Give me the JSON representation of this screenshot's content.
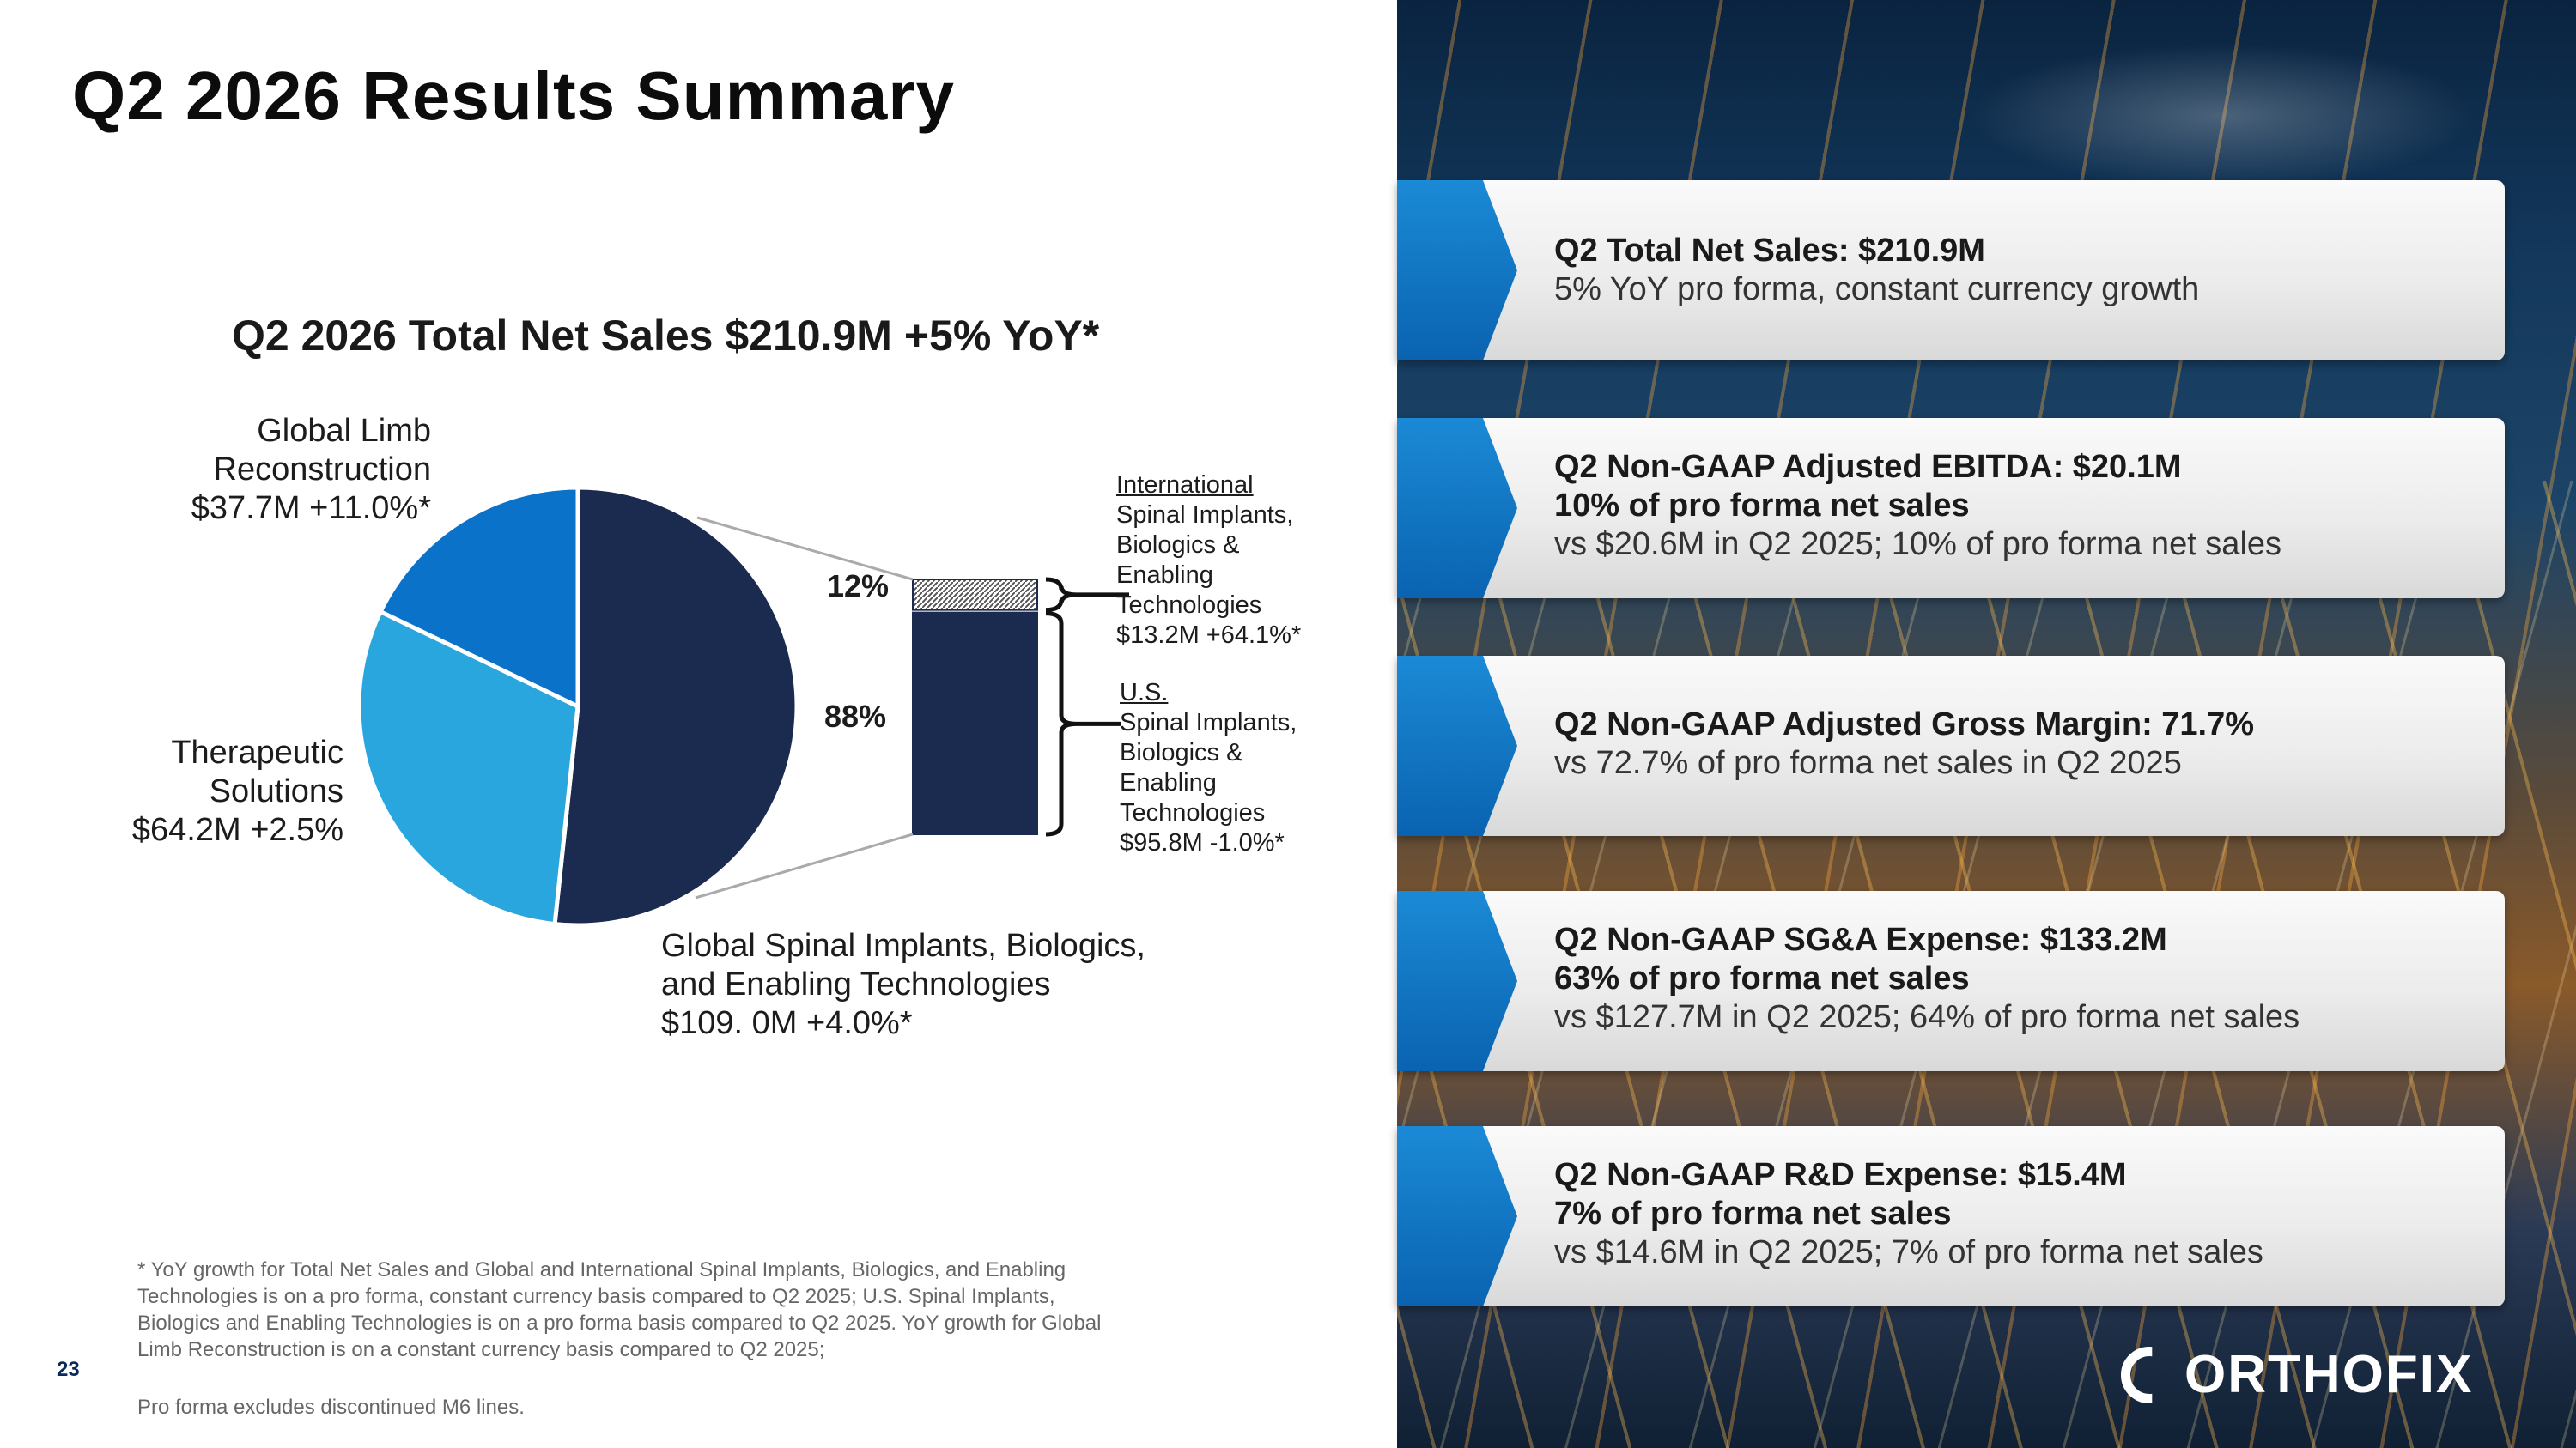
{
  "page": {
    "title": "Q2 2026 Results Summary",
    "page_number": "23",
    "footnote": "* YoY growth for Total Net Sales and Global and International Spinal Implants, Biologics, and Enabling Technologies is on a pro forma, constant currency basis compared to Q2 2025; U.S. Spinal Implants, Biologics and Enabling Technologies is on a pro forma basis compared to Q2 2025. YoY growth for Global Limb Reconstruction is on a constant currency basis compared to Q2 2025;",
    "footnote2": "Pro forma excludes discontinued M6 lines."
  },
  "chart_data": [
    {
      "type": "pie",
      "title": "Q2 2026 Total Net Sales $210.9M +5% YoY*",
      "slices": [
        {
          "line1": "Global Spinal Implants, Biologics,",
          "line2": "and Enabling Technologies",
          "line3": "$109. 0M +4.0%*",
          "value": 109.0,
          "color": "#1b2b4f"
        },
        {
          "line1": "Therapeutic",
          "line2": "Solutions",
          "line3": "$64.2M  +2.5%",
          "value": 64.2,
          "color": "#2aa6df"
        },
        {
          "line1": "Global Limb",
          "line2": "Reconstruction",
          "line3": "$37.7M  +11.0%*",
          "value": 37.7,
          "color": "#0a72c8"
        }
      ]
    },
    {
      "type": "bar",
      "stacked": true,
      "segments": [
        {
          "pct_label": "12%",
          "value": 12,
          "pattern": "hatched"
        },
        {
          "pct_label": "88%",
          "value": 88,
          "color": "#1b2b4f"
        }
      ],
      "labels": {
        "international": {
          "l1": "International",
          "l2a": "Spinal",
          "l2b": " Implants,",
          "l3": "Biologics &",
          "l4": "Enabling",
          "l5": "Technologies",
          "l6": "$13.2M  +64.1%*"
        },
        "us": {
          "l1": "U.S.",
          "l2": "Spinal Implants,",
          "l3": "Biologics &",
          "l4": "Enabling",
          "l5": "Technologies",
          "l6": "$95.8M  -1.0%*"
        }
      }
    }
  ],
  "kpis": [
    {
      "title": "Q2 Total Net Sales: $210.9M",
      "bold2": "",
      "line": "5% YoY pro forma, constant currency growth"
    },
    {
      "title": "Q2 Non-GAAP Adjusted EBITDA: $20.1M",
      "bold2": "10% of pro forma net sales",
      "line": "vs $20.6M in Q2 2025; 10% of pro forma net sales"
    },
    {
      "title": "Q2 Non-GAAP Adjusted Gross Margin: 71.7%",
      "bold2": "",
      "line": "vs 72.7% of pro forma net sales in Q2 2025"
    },
    {
      "title": "Q2 Non-GAAP SG&A Expense: $133.2M",
      "bold2": "63% of pro forma net sales",
      "line": "vs $127.7M in Q2 2025; 64% of pro forma net sales"
    },
    {
      "title": "Q2 Non-GAAP R&D Expense: $15.4M",
      "bold2": "7% of pro forma net sales",
      "line": "vs $14.6M in Q2 2025; 7% of pro forma net sales"
    }
  ],
  "brand": {
    "logo_text": "ORTHOFIX",
    "logo_icon": "orthofix-mark-icon",
    "accent": "#0a72c8"
  }
}
